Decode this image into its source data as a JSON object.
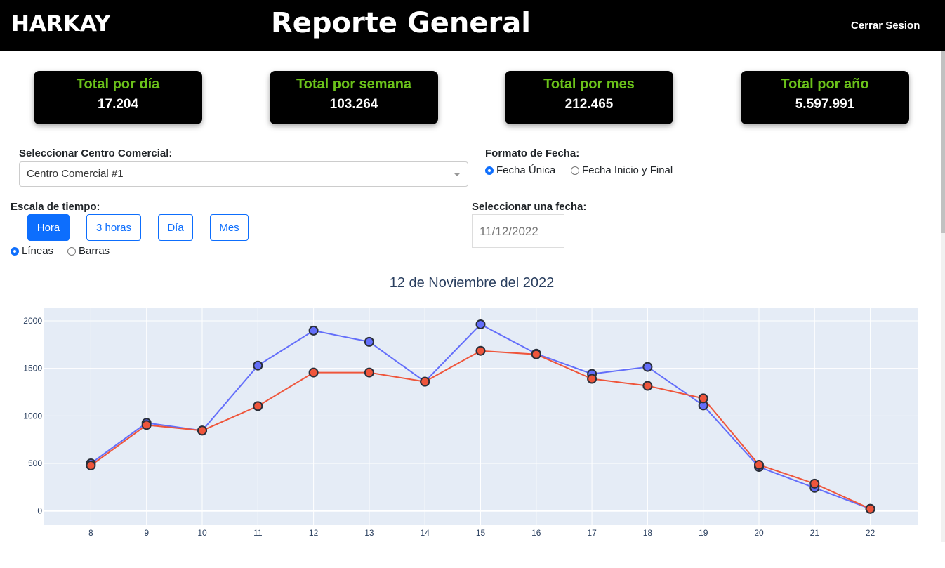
{
  "header": {
    "brand": "HARKAY",
    "title": "Reporte General",
    "logout": "Cerrar Sesion"
  },
  "cards": [
    {
      "label": "Total por día",
      "value": "17.204"
    },
    {
      "label": "Total por semana",
      "value": "103.264"
    },
    {
      "label": "Total por mes",
      "value": "212.465"
    },
    {
      "label": "Total por año",
      "value": "5.597.991"
    }
  ],
  "mall": {
    "label": "Seleccionar Centro Comercial:",
    "value": "Centro Comercial #1"
  },
  "date_format": {
    "label": "Formato de Fecha:",
    "options": [
      "Fecha Única",
      "Fecha Inicio y Final"
    ],
    "selected": "Fecha Única"
  },
  "time_scale": {
    "label": "Escala de tiempo:",
    "buttons": [
      "Hora",
      "3 horas",
      "Día",
      "Mes"
    ],
    "active": "Hora"
  },
  "chart_type": {
    "options": [
      "Líneas",
      "Barras"
    ],
    "selected": "Líneas"
  },
  "date_picker": {
    "label": "Seleccionar una fecha:",
    "value": "11/12/2022"
  },
  "colors": {
    "series1": "#636efa",
    "series2": "#ef553b",
    "plot_bg": "#e5ecf6"
  },
  "chart_data": {
    "type": "line",
    "title": "12 de Noviembre del 2022",
    "x": [
      8,
      9,
      10,
      11,
      12,
      13,
      14,
      15,
      16,
      17,
      18,
      19,
      20,
      21,
      22
    ],
    "series": [
      {
        "values": [
          500,
          926,
          845,
          1529,
          1897,
          1779,
          1360,
          1963,
          1654,
          1441,
          1515,
          1110,
          463,
          243,
          22
        ]
      },
      {
        "values": [
          478,
          904,
          845,
          1103,
          1456,
          1456,
          1360,
          1684,
          1647,
          1390,
          1316,
          1184,
          485,
          287,
          22
        ]
      }
    ],
    "yticks": [
      0,
      500,
      1000,
      1500,
      2000
    ],
    "ylim": [
      -150,
      2140
    ],
    "xlim": [
      7.15,
      22.85
    ],
    "grid": true,
    "markers": true
  }
}
